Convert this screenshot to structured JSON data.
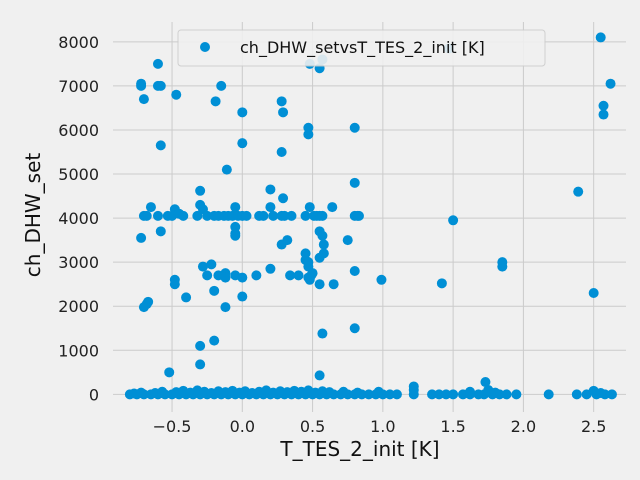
{
  "chart_data": {
    "type": "scatter",
    "title": "",
    "xlabel": "T_TES_2_init [K]",
    "ylabel": "ch_DHW_set",
    "xlim": [
      -0.92,
      2.73
    ],
    "ylim": [
      -400,
      8450
    ],
    "xticks": [
      -0.5,
      0.0,
      0.5,
      1.0,
      1.5,
      2.0,
      2.5
    ],
    "xtick_labels": [
      "−0.5",
      "0.0",
      "0.5",
      "1.0",
      "1.5",
      "2.0",
      "2.5"
    ],
    "yticks": [
      0,
      1000,
      2000,
      3000,
      4000,
      5000,
      6000,
      7000,
      8000
    ],
    "ytick_labels": [
      "0",
      "1000",
      "2000",
      "3000",
      "4000",
      "5000",
      "6000",
      "7000",
      "8000"
    ],
    "grid": true,
    "legend_position": "top-center",
    "color": "#008fd5",
    "series": [
      {
        "name": "ch_DHW_setvsT_TES_2_init [K]",
        "points": [
          [
            -0.72,
            7050
          ],
          [
            -0.72,
            7000
          ],
          [
            -0.7,
            6700
          ],
          [
            -0.6,
            7500
          ],
          [
            -0.6,
            7000
          ],
          [
            -0.58,
            7000
          ],
          [
            -0.47,
            6800
          ],
          [
            -0.19,
            6650
          ],
          [
            -0.15,
            7000
          ],
          [
            0.0,
            6400
          ],
          [
            0.28,
            6650
          ],
          [
            0.29,
            6400
          ],
          [
            0.48,
            7500
          ],
          [
            0.55,
            7400
          ],
          [
            0.57,
            7600
          ],
          [
            1.47,
            7850
          ],
          [
            2.55,
            8100
          ],
          [
            2.62,
            7050
          ],
          [
            2.57,
            6550
          ],
          [
            2.57,
            6350
          ],
          [
            -0.58,
            5650
          ],
          [
            0.0,
            5700
          ],
          [
            -0.11,
            5100
          ],
          [
            0.28,
            5500
          ],
          [
            0.47,
            6050
          ],
          [
            0.47,
            5900
          ],
          [
            0.8,
            6050
          ],
          [
            0.8,
            4800
          ],
          [
            -0.3,
            4620
          ],
          [
            0.2,
            4650
          ],
          [
            0.29,
            4450
          ],
          [
            2.39,
            4600
          ],
          [
            -0.72,
            3550
          ],
          [
            -0.7,
            4050
          ],
          [
            -0.68,
            4050
          ],
          [
            -0.65,
            4250
          ],
          [
            -0.6,
            4050
          ],
          [
            -0.58,
            3700
          ],
          [
            -0.53,
            4050
          ],
          [
            -0.5,
            4050
          ],
          [
            -0.48,
            4200
          ],
          [
            -0.45,
            4100
          ],
          [
            -0.42,
            4050
          ],
          [
            -0.32,
            4050
          ],
          [
            -0.3,
            4300
          ],
          [
            -0.28,
            4200
          ],
          [
            -0.25,
            4050
          ],
          [
            -0.2,
            4050
          ],
          [
            -0.17,
            4050
          ],
          [
            -0.13,
            4050
          ],
          [
            -0.1,
            4050
          ],
          [
            -0.07,
            4050
          ],
          [
            -0.05,
            4250
          ],
          [
            -0.05,
            3800
          ],
          [
            -0.05,
            3650
          ],
          [
            -0.03,
            4050
          ],
          [
            0.0,
            4050
          ],
          [
            0.03,
            4050
          ],
          [
            0.12,
            4050
          ],
          [
            0.15,
            4050
          ],
          [
            0.2,
            4250
          ],
          [
            0.22,
            4050
          ],
          [
            0.28,
            4050
          ],
          [
            0.3,
            4050
          ],
          [
            0.35,
            4050
          ],
          [
            0.45,
            4050
          ],
          [
            0.48,
            4250
          ],
          [
            0.51,
            4050
          ],
          [
            0.53,
            4050
          ],
          [
            0.55,
            4050
          ],
          [
            0.55,
            3700
          ],
          [
            0.57,
            3600
          ],
          [
            0.57,
            4050
          ],
          [
            0.58,
            3400
          ],
          [
            0.58,
            3200
          ],
          [
            0.64,
            4250
          ],
          [
            0.75,
            3500
          ],
          [
            0.8,
            4050
          ],
          [
            0.82,
            4050
          ],
          [
            0.83,
            4050
          ],
          [
            1.5,
            3950
          ],
          [
            -0.48,
            2600
          ],
          [
            -0.48,
            2500
          ],
          [
            -0.4,
            2200
          ],
          [
            -0.28,
            2900
          ],
          [
            -0.25,
            2700
          ],
          [
            -0.22,
            2950
          ],
          [
            -0.2,
            2350
          ],
          [
            -0.17,
            2700
          ],
          [
            -0.12,
            2750
          ],
          [
            -0.12,
            2650
          ],
          [
            -0.05,
            3600
          ],
          [
            -0.05,
            2700
          ],
          [
            0.0,
            2650
          ],
          [
            0.0,
            2220
          ],
          [
            0.1,
            2700
          ],
          [
            0.2,
            2850
          ],
          [
            0.28,
            3400
          ],
          [
            0.32,
            3500
          ],
          [
            0.34,
            2700
          ],
          [
            0.4,
            2700
          ],
          [
            0.45,
            3200
          ],
          [
            0.45,
            3050
          ],
          [
            0.47,
            3000
          ],
          [
            0.47,
            2900
          ],
          [
            0.47,
            2650
          ],
          [
            0.48,
            2600
          ],
          [
            0.49,
            2700
          ],
          [
            0.5,
            2750
          ],
          [
            0.55,
            3100
          ],
          [
            0.55,
            2500
          ],
          [
            0.65,
            2500
          ],
          [
            0.8,
            2800
          ],
          [
            0.99,
            2600
          ],
          [
            1.42,
            2520
          ],
          [
            1.85,
            3000
          ],
          [
            1.85,
            2900
          ],
          [
            2.5,
            2300
          ],
          [
            -0.67,
            2100
          ],
          [
            -0.68,
            2050
          ],
          [
            -0.7,
            1980
          ],
          [
            -0.3,
            1100
          ],
          [
            -0.2,
            1220
          ],
          [
            -0.12,
            1980
          ],
          [
            -0.3,
            680
          ],
          [
            0.57,
            1380
          ],
          [
            0.8,
            1500
          ],
          [
            -0.52,
            500
          ],
          [
            0.55,
            430
          ],
          [
            1.73,
            280
          ],
          [
            -0.8,
            0
          ],
          [
            -0.75,
            0
          ],
          [
            -0.7,
            0
          ],
          [
            -0.65,
            0
          ],
          [
            -0.6,
            0
          ],
          [
            -0.55,
            0
          ],
          [
            -0.5,
            0
          ],
          [
            -0.45,
            0
          ],
          [
            -0.4,
            0
          ],
          [
            -0.35,
            0
          ],
          [
            -0.3,
            0
          ],
          [
            -0.25,
            0
          ],
          [
            -0.2,
            0
          ],
          [
            -0.15,
            0
          ],
          [
            -0.1,
            0
          ],
          [
            -0.05,
            0
          ],
          [
            0.0,
            0
          ],
          [
            0.05,
            0
          ],
          [
            0.1,
            0
          ],
          [
            0.15,
            0
          ],
          [
            0.2,
            0
          ],
          [
            0.25,
            0
          ],
          [
            0.3,
            0
          ],
          [
            0.35,
            0
          ],
          [
            0.4,
            0
          ],
          [
            0.45,
            0
          ],
          [
            0.5,
            0
          ],
          [
            0.55,
            0
          ],
          [
            0.6,
            0
          ],
          [
            0.65,
            0
          ],
          [
            0.7,
            0
          ],
          [
            0.75,
            0
          ],
          [
            0.8,
            0
          ],
          [
            0.85,
            0
          ],
          [
            0.9,
            0
          ],
          [
            0.95,
            0
          ],
          [
            1.0,
            0
          ],
          [
            1.05,
            0
          ],
          [
            1.1,
            0
          ],
          [
            1.22,
            0
          ],
          [
            1.35,
            0
          ],
          [
            1.4,
            0
          ],
          [
            1.45,
            0
          ],
          [
            1.5,
            0
          ],
          [
            1.57,
            0
          ],
          [
            1.62,
            0
          ],
          [
            1.68,
            0
          ],
          [
            1.72,
            0
          ],
          [
            1.78,
            0
          ],
          [
            1.83,
            0
          ],
          [
            1.88,
            0
          ],
          [
            1.95,
            0
          ],
          [
            2.18,
            0
          ],
          [
            2.38,
            0
          ],
          [
            2.45,
            0
          ],
          [
            2.52,
            0
          ],
          [
            2.58,
            0
          ],
          [
            2.63,
            0
          ],
          [
            -0.77,
            20
          ],
          [
            -0.72,
            40
          ],
          [
            -0.62,
            30
          ],
          [
            -0.57,
            60
          ],
          [
            -0.47,
            50
          ],
          [
            -0.42,
            80
          ],
          [
            -0.37,
            40
          ],
          [
            -0.32,
            90
          ],
          [
            -0.27,
            60
          ],
          [
            -0.22,
            30
          ],
          [
            -0.17,
            70
          ],
          [
            -0.12,
            50
          ],
          [
            -0.07,
            80
          ],
          [
            -0.02,
            40
          ],
          [
            0.02,
            70
          ],
          [
            0.07,
            30
          ],
          [
            0.12,
            60
          ],
          [
            0.17,
            90
          ],
          [
            0.22,
            40
          ],
          [
            0.27,
            70
          ],
          [
            0.32,
            50
          ],
          [
            0.37,
            80
          ],
          [
            0.42,
            60
          ],
          [
            0.47,
            90
          ],
          [
            0.52,
            40
          ],
          [
            0.57,
            70
          ],
          [
            0.62,
            50
          ],
          [
            0.72,
            60
          ],
          [
            0.82,
            40
          ],
          [
            0.97,
            60
          ],
          [
            1.22,
            100
          ],
          [
            1.22,
            180
          ],
          [
            1.62,
            60
          ],
          [
            1.75,
            100
          ],
          [
            1.8,
            40
          ],
          [
            2.5,
            80
          ],
          [
            2.55,
            30
          ]
        ]
      }
    ]
  }
}
